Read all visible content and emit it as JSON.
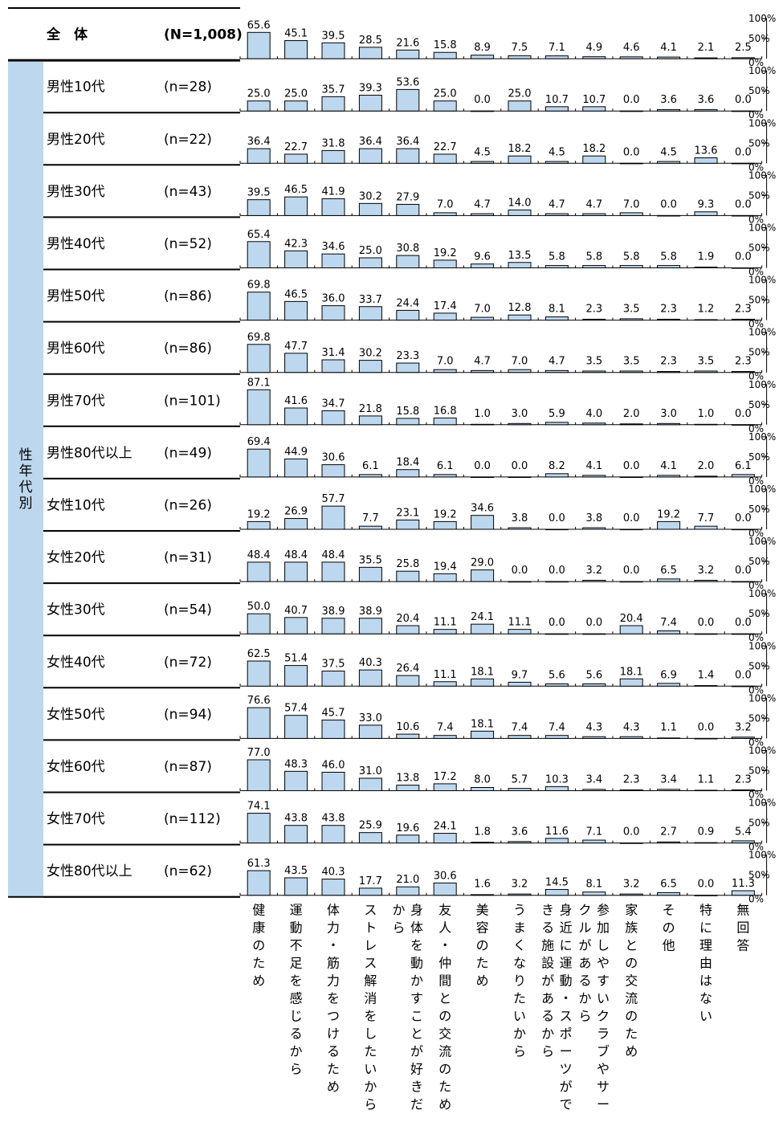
{
  "chart_data": {
    "type": "bar",
    "group_label": "性年代別",
    "ylim": [
      0,
      100
    ],
    "axis_ticks": [
      "100%",
      "50%",
      "0%"
    ],
    "categories": [
      "健康のため",
      "運動不足を感じるから",
      "体力・筋力をつけるため",
      "ストレス解消をしたいから",
      "身体を動かすことが好きだから",
      "友人・仲間との交流のため",
      "美容のため",
      "うまくなりたいから",
      "身近に運動・スポーツができる施設があるから",
      "参加しやすいクラブやサークルがあるから",
      "家族との交流のため",
      "その他",
      "特に理由はない",
      "無回答"
    ],
    "series": [
      {
        "name": "全　体",
        "n": "(N=1,008)",
        "values": [
          65.6,
          45.1,
          39.5,
          28.5,
          21.6,
          15.8,
          8.9,
          7.5,
          7.1,
          4.9,
          4.6,
          4.1,
          2.1,
          2.5
        ]
      },
      {
        "name": "男性10代",
        "n": "(n=28)",
        "values": [
          25.0,
          25.0,
          35.7,
          39.3,
          53.6,
          25.0,
          0.0,
          25.0,
          10.7,
          10.7,
          0.0,
          3.6,
          3.6,
          0.0
        ]
      },
      {
        "name": "男性20代",
        "n": "(n=22)",
        "values": [
          36.4,
          22.7,
          31.8,
          36.4,
          36.4,
          22.7,
          4.5,
          18.2,
          4.5,
          18.2,
          0.0,
          4.5,
          13.6,
          0.0
        ]
      },
      {
        "name": "男性30代",
        "n": "(n=43)",
        "values": [
          39.5,
          46.5,
          41.9,
          30.2,
          27.9,
          7.0,
          4.7,
          14.0,
          4.7,
          4.7,
          7.0,
          0.0,
          9.3,
          0.0
        ]
      },
      {
        "name": "男性40代",
        "n": "(n=52)",
        "values": [
          65.4,
          42.3,
          34.6,
          25.0,
          30.8,
          19.2,
          9.6,
          13.5,
          5.8,
          5.8,
          5.8,
          5.8,
          1.9,
          0.0
        ]
      },
      {
        "name": "男性50代",
        "n": "(n=86)",
        "values": [
          69.8,
          46.5,
          36.0,
          33.7,
          24.4,
          17.4,
          7.0,
          12.8,
          8.1,
          2.3,
          3.5,
          2.3,
          1.2,
          2.3
        ]
      },
      {
        "name": "男性60代",
        "n": "(n=86)",
        "values": [
          69.8,
          47.7,
          31.4,
          30.2,
          23.3,
          7.0,
          4.7,
          7.0,
          4.7,
          3.5,
          3.5,
          2.3,
          3.5,
          2.3
        ]
      },
      {
        "name": "男性70代",
        "n": "(n=101)",
        "values": [
          87.1,
          41.6,
          34.7,
          21.8,
          15.8,
          16.8,
          1.0,
          3.0,
          5.9,
          4.0,
          2.0,
          3.0,
          1.0,
          0.0
        ]
      },
      {
        "name": "男性80代以上",
        "n": "(n=49)",
        "values": [
          69.4,
          44.9,
          30.6,
          6.1,
          18.4,
          6.1,
          0.0,
          0.0,
          8.2,
          4.1,
          0.0,
          4.1,
          2.0,
          6.1
        ]
      },
      {
        "name": "女性10代",
        "n": "(n=26)",
        "values": [
          19.2,
          26.9,
          57.7,
          7.7,
          23.1,
          19.2,
          34.6,
          3.8,
          0.0,
          3.8,
          0.0,
          19.2,
          7.7,
          0.0
        ]
      },
      {
        "name": "女性20代",
        "n": "(n=31)",
        "values": [
          48.4,
          48.4,
          48.4,
          35.5,
          25.8,
          19.4,
          29.0,
          0.0,
          0.0,
          3.2,
          0.0,
          6.5,
          3.2,
          0.0
        ]
      },
      {
        "name": "女性30代",
        "n": "(n=54)",
        "values": [
          50.0,
          40.7,
          38.9,
          38.9,
          20.4,
          11.1,
          24.1,
          11.1,
          0.0,
          0.0,
          20.4,
          7.4,
          0.0,
          0.0
        ]
      },
      {
        "name": "女性40代",
        "n": "(n=72)",
        "values": [
          62.5,
          51.4,
          37.5,
          40.3,
          26.4,
          11.1,
          18.1,
          9.7,
          5.6,
          5.6,
          18.1,
          6.9,
          1.4,
          0.0
        ]
      },
      {
        "name": "女性50代",
        "n": "(n=94)",
        "values": [
          76.6,
          57.4,
          45.7,
          33.0,
          10.6,
          7.4,
          18.1,
          7.4,
          7.4,
          4.3,
          4.3,
          1.1,
          0.0,
          3.2
        ]
      },
      {
        "name": "女性60代",
        "n": "(n=87)",
        "values": [
          77.0,
          48.3,
          46.0,
          31.0,
          13.8,
          17.2,
          8.0,
          5.7,
          10.3,
          3.4,
          2.3,
          3.4,
          1.1,
          2.3
        ]
      },
      {
        "name": "女性70代",
        "n": "(n=112)",
        "values": [
          74.1,
          43.8,
          43.8,
          25.9,
          19.6,
          24.1,
          1.8,
          3.6,
          11.6,
          7.1,
          0.0,
          2.7,
          0.9,
          5.4
        ]
      },
      {
        "name": "女性80代以上",
        "n": "(n=62)",
        "values": [
          61.3,
          43.5,
          40.3,
          17.7,
          21.0,
          30.6,
          1.6,
          3.2,
          14.5,
          8.1,
          3.2,
          6.5,
          0.0,
          11.3
        ]
      }
    ]
  }
}
